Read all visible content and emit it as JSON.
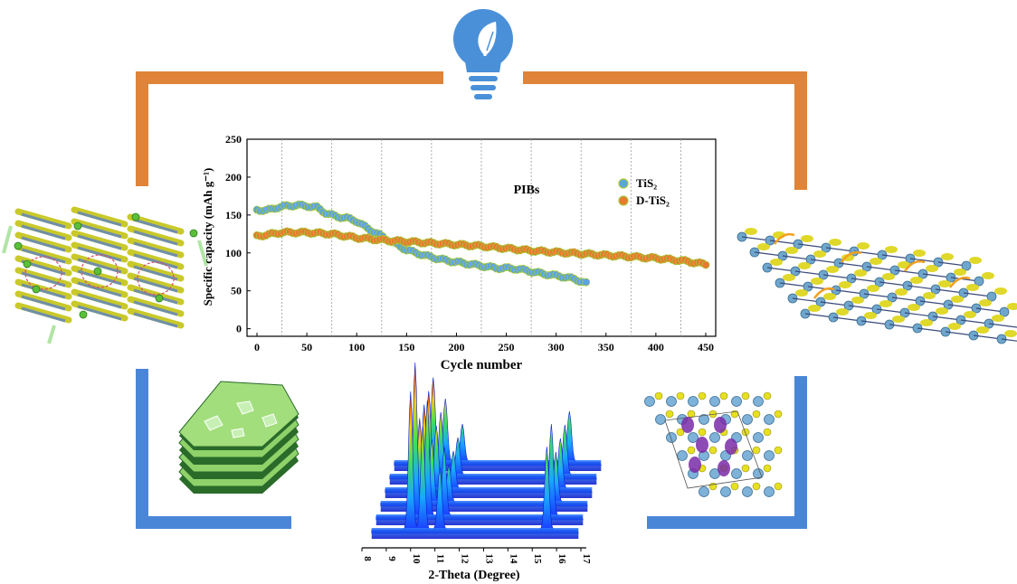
{
  "colors": {
    "frame_orange": "#df8438",
    "frame_blue": "#4a86d8",
    "bulb_blue": "#4a90d9",
    "series_tis2": "#5aa5e0",
    "series_dtis2": "#e8792e",
    "point_edge": "#a8c73a"
  },
  "icons": [
    "lightbulb-leaf-icon",
    "layered-structure-illustration",
    "hexagon-nanosheet-illustration",
    "crystal-lattice-illustration",
    "monolayer-lattice-illustration"
  ],
  "chart_data": [
    {
      "type": "scatter",
      "title": "",
      "annotation": "PIBs",
      "xlabel": "Cycle number",
      "ylabel": "Specific capacity (mAh g⁻¹)",
      "xlim": [
        -10,
        460
      ],
      "ylim": [
        -10,
        250
      ],
      "xticks": [
        0,
        50,
        100,
        150,
        200,
        250,
        300,
        350,
        400,
        450
      ],
      "yticks": [
        0,
        50,
        100,
        150,
        200,
        250
      ],
      "grid": "vertical dotted lines every 50 cycles",
      "legend_position": "top-right",
      "series": [
        {
          "name": "TiS₂",
          "color": "#5aa5e0",
          "points": [
            [
              0,
              157
            ],
            [
              10,
              156
            ],
            [
              20,
              160
            ],
            [
              30,
              162
            ],
            [
              40,
              163
            ],
            [
              50,
              162
            ],
            [
              60,
              160
            ],
            [
              70,
              152
            ],
            [
              80,
              148
            ],
            [
              90,
              146
            ],
            [
              100,
              142
            ],
            [
              110,
              133
            ],
            [
              120,
              126
            ],
            [
              130,
              118
            ],
            [
              140,
              111
            ],
            [
              150,
              104
            ],
            [
              160,
              100
            ],
            [
              170,
              96
            ],
            [
              180,
              93
            ],
            [
              190,
              90
            ],
            [
              200,
              88
            ],
            [
              210,
              86
            ],
            [
              220,
              84
            ],
            [
              230,
              82
            ],
            [
              240,
              80
            ],
            [
              250,
              80
            ],
            [
              260,
              79
            ],
            [
              270,
              77
            ],
            [
              280,
              74
            ],
            [
              290,
              72
            ],
            [
              300,
              70
            ],
            [
              310,
              68
            ],
            [
              320,
              65
            ],
            [
              330,
              60
            ]
          ]
        },
        {
          "name": "D-TiS₂",
          "color": "#e8792e",
          "points": [
            [
              0,
              122
            ],
            [
              25,
              127
            ],
            [
              50,
              127
            ],
            [
              75,
              125
            ],
            [
              100,
              120
            ],
            [
              125,
              117
            ],
            [
              150,
              115
            ],
            [
              175,
              113
            ],
            [
              200,
              111
            ],
            [
              225,
              109
            ],
            [
              250,
              106
            ],
            [
              275,
              103
            ],
            [
              300,
              101
            ],
            [
              325,
              99
            ],
            [
              350,
              97
            ],
            [
              375,
              95
            ],
            [
              400,
              93
            ],
            [
              425,
              90
            ],
            [
              450,
              85
            ]
          ]
        }
      ]
    },
    {
      "type": "area",
      "title": "",
      "xlabel": "2-Theta (Degree)",
      "xticks": [
        8,
        9,
        10,
        11,
        12,
        13,
        14,
        15,
        16,
        17
      ],
      "peaks_note": "3D XRD waterfall surface with peaks near 10°, 11° and 15.6°",
      "peaks": [
        {
          "two_theta": 10.0,
          "height": 1.0
        },
        {
          "two_theta": 10.5,
          "height": 0.75
        },
        {
          "two_theta": 11.2,
          "height": 0.45
        },
        {
          "two_theta": 15.6,
          "height": 0.6
        }
      ]
    }
  ]
}
